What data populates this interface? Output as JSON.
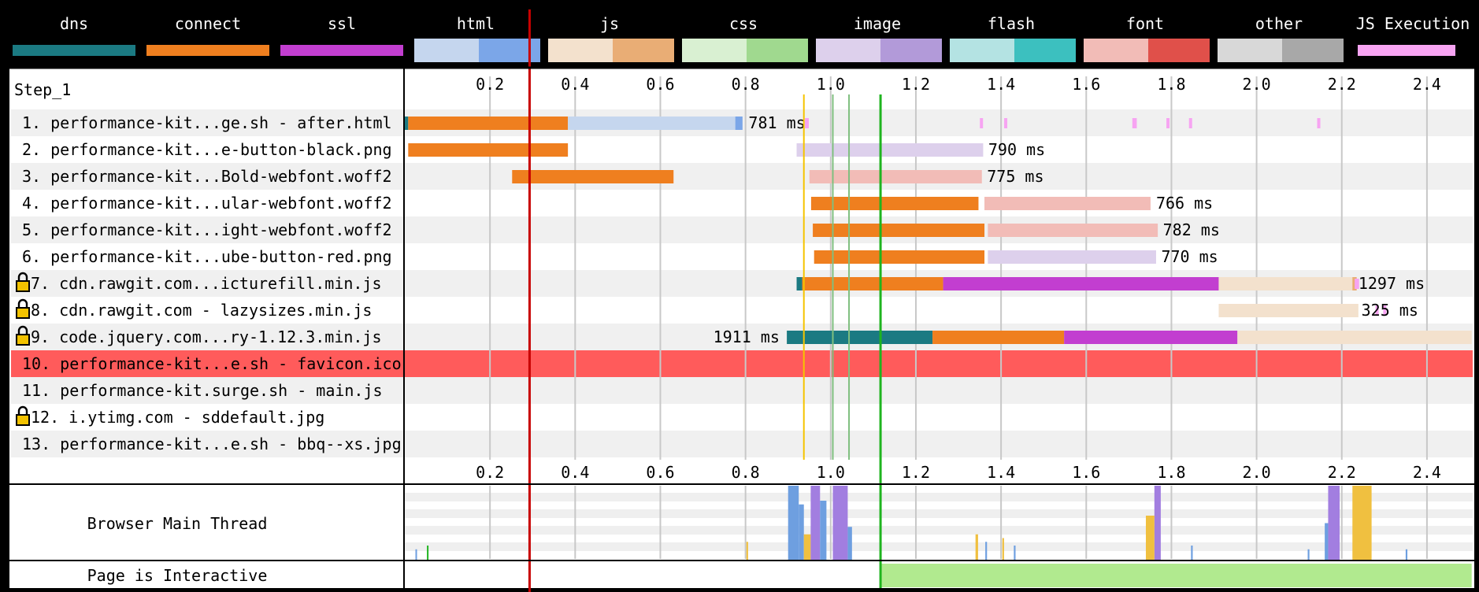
{
  "step_label": "Step_1",
  "legend": [
    {
      "name": "dns",
      "light": "#1b7a82",
      "dark": "#1b7a82",
      "solid": true
    },
    {
      "name": "connect",
      "light": "#ef7f1f",
      "dark": "#ef7f1f",
      "solid": true
    },
    {
      "name": "ssl",
      "light": "#c23ed0",
      "dark": "#c23ed0",
      "solid": true
    },
    {
      "name": "html",
      "light": "#c5d6ee",
      "dark": "#7ba6e8"
    },
    {
      "name": "js",
      "light": "#f3e1cd",
      "dark": "#e9ad75"
    },
    {
      "name": "css",
      "light": "#d9f0d2",
      "dark": "#a0d98f"
    },
    {
      "name": "image",
      "light": "#ddd0ec",
      "dark": "#b29ad9"
    },
    {
      "name": "flash",
      "light": "#b4e3e3",
      "dark": "#3cc0bf"
    },
    {
      "name": "font",
      "light": "#f2bcb7",
      "dark": "#e0504a"
    },
    {
      "name": "other",
      "light": "#d8d8d8",
      "dark": "#a8a8a8"
    },
    {
      "name": "JS Execution",
      "light": "#f7a4f2",
      "dark": "#f7a4f2",
      "solid": true,
      "narrow": true
    }
  ],
  "chart_data": {
    "type": "waterfall",
    "xlim": [
      0,
      2.5
    ],
    "x_ticks": [
      0.2,
      0.4,
      0.6,
      0.8,
      1.0,
      1.2,
      1.4,
      1.6,
      1.8,
      2.0,
      2.2,
      2.4
    ],
    "x_tick_labels": [
      "0.2",
      "0.4",
      "0.6",
      "0.8",
      "1.0",
      "1.2",
      "1.4",
      "1.6",
      "1.8",
      "2.0",
      "2.2",
      "2.4"
    ],
    "markers": [
      {
        "x": 0.293,
        "color": "#c80000"
      },
      {
        "x": 0.937,
        "color": "#f5c400"
      },
      {
        "x": 1.005,
        "color": "#7fbf7f"
      },
      {
        "x": 1.043,
        "color": "#7fbf7f"
      },
      {
        "x": 1.117,
        "color": "#1fb41f"
      }
    ],
    "requests": [
      {
        "label": "1. performance-kit...ge.sh - after.html",
        "lock": false,
        "highlight": false,
        "segments": [
          {
            "s": 0,
            "e": 0.008,
            "c": "#1b7a82"
          },
          {
            "s": 0.008,
            "e": 0.383,
            "c": "#ef7f1f"
          },
          {
            "s": 0.383,
            "e": 0.776,
            "c": "#c5d6ee"
          },
          {
            "s": 0.776,
            "e": 0.793,
            "c": "#7ba6e8"
          }
        ],
        "time": "781 ms",
        "label_x": 0.807,
        "label_side": "right",
        "js": [
          0.942,
          0.944,
          1.353,
          1.41,
          1.711,
          1.714,
          1.791,
          1.844,
          2.145
        ]
      },
      {
        "label": "2. performance-kit...e-button-black.png",
        "lock": false,
        "highlight": false,
        "segments": [
          {
            "s": 0.008,
            "e": 0.383,
            "c": "#ef7f1f"
          },
          {
            "s": 0.92,
            "e": 1.358,
            "c": "#ddd0ec"
          }
        ],
        "time": "790 ms",
        "label_x": 1.37,
        "label_side": "right",
        "js": []
      },
      {
        "label": "3. performance-kit...Bold-webfont.woff2",
        "lock": false,
        "highlight": false,
        "segments": [
          {
            "s": 0.252,
            "e": 0.631,
            "c": "#ef7f1f"
          },
          {
            "s": 0.95,
            "e": 1.355,
            "c": "#f2bcb7"
          }
        ],
        "time": "775 ms",
        "label_x": 1.367,
        "label_side": "right",
        "js": []
      },
      {
        "label": "4. performance-kit...ular-webfont.woff2",
        "lock": false,
        "highlight": false,
        "segments": [
          {
            "s": 0.954,
            "e": 1.347,
            "c": "#ef7f1f"
          },
          {
            "s": 1.361,
            "e": 1.751,
            "c": "#f2bcb7"
          }
        ],
        "time": "766 ms",
        "label_x": 1.764,
        "label_side": "right",
        "js": []
      },
      {
        "label": "5. performance-kit...ight-webfont.woff2",
        "lock": false,
        "highlight": false,
        "segments": [
          {
            "s": 0.958,
            "e": 1.361,
            "c": "#ef7f1f"
          },
          {
            "s": 1.369,
            "e": 1.768,
            "c": "#f2bcb7"
          }
        ],
        "time": "782 ms",
        "label_x": 1.78,
        "label_side": "right",
        "js": []
      },
      {
        "label": "6. performance-kit...ube-button-red.png",
        "lock": false,
        "highlight": false,
        "segments": [
          {
            "s": 0.961,
            "e": 1.361,
            "c": "#ef7f1f"
          },
          {
            "s": 1.369,
            "e": 1.764,
            "c": "#ddd0ec"
          }
        ],
        "time": "770 ms",
        "label_x": 1.776,
        "label_side": "right",
        "js": []
      },
      {
        "label": "7. cdn.rawgit.com...icturefill.min.js",
        "lock": true,
        "highlight": false,
        "segments": [
          {
            "s": 0.92,
            "e": 0.933,
            "c": "#1b7a82"
          },
          {
            "s": 0.933,
            "e": 1.264,
            "c": "#ef7f1f"
          },
          {
            "s": 1.264,
            "e": 1.911,
            "c": "#c23ed0"
          },
          {
            "s": 1.911,
            "e": 2.231,
            "c": "#f3e1cd"
          },
          {
            "s": 2.225,
            "e": 2.235,
            "c": "#e9ad75"
          }
        ],
        "time": "1297 ms",
        "label_x": 2.239,
        "label_side": "right",
        "js": [
          2.233,
          2.236
        ]
      },
      {
        "label": "8. cdn.rawgit.com - lazysizes.min.js",
        "lock": true,
        "highlight": false,
        "segments": [
          {
            "s": 1.911,
            "e": 2.239,
            "c": "#f3e1cd"
          }
        ],
        "time": "325 ms",
        "label_x": 2.246,
        "label_side": "right",
        "js": [
          2.282,
          2.3
        ]
      },
      {
        "label": "9. code.jquery.com...ry-1.12.3.min.js",
        "lock": true,
        "highlight": false,
        "segments": [
          {
            "s": 0.897,
            "e": 1.239,
            "c": "#1b7a82"
          },
          {
            "s": 1.239,
            "e": 1.548,
            "c": "#ef7f1f"
          },
          {
            "s": 1.548,
            "e": 1.955,
            "c": "#c23ed0"
          },
          {
            "s": 1.955,
            "e": 2.505,
            "c": "#f3e1cd"
          }
        ],
        "time": "1911 ms",
        "label_x": 0.88,
        "label_side": "left",
        "js": []
      },
      {
        "label": "10. performance-kit...e.sh - favicon.ico",
        "lock": false,
        "highlight": true,
        "segments": [],
        "time": "",
        "js": []
      },
      {
        "label": "11. performance-kit.surge.sh - main.js",
        "lock": false,
        "highlight": false,
        "segments": [],
        "time": "",
        "js": []
      },
      {
        "label": "12. i.ytimg.com - sddefault.jpg",
        "lock": true,
        "highlight": false,
        "segments": [],
        "time": "",
        "js": []
      },
      {
        "label": "13. performance-kit...e.sh - bbq--xs.jpg",
        "lock": false,
        "highlight": false,
        "segments": [],
        "time": "",
        "js": []
      }
    ],
    "main_thread": {
      "label": "Browser Main Thread",
      "bursts": [
        {
          "s": 0.9,
          "e": 0.925,
          "c": "#6e9fe0",
          "h": 1.0
        },
        {
          "s": 0.925,
          "e": 0.937,
          "c": "#6e9fe0",
          "h": 0.75
        },
        {
          "s": 0.937,
          "e": 0.953,
          "c": "#f0c040",
          "h": 0.35
        },
        {
          "s": 0.953,
          "e": 0.975,
          "c": "#a27ee0",
          "h": 1.0
        },
        {
          "s": 0.975,
          "e": 0.99,
          "c": "#6e9fe0",
          "h": 0.8
        },
        {
          "s": 1.005,
          "e": 1.04,
          "c": "#a27ee0",
          "h": 1.0
        },
        {
          "s": 1.04,
          "e": 1.05,
          "c": "#6e9fe0",
          "h": 0.45
        },
        {
          "s": 1.76,
          "e": 1.775,
          "c": "#a27ee0",
          "h": 1.0
        },
        {
          "s": 1.74,
          "e": 1.76,
          "c": "#f0c040",
          "h": 0.6
        },
        {
          "s": 2.168,
          "e": 2.195,
          "c": "#a27ee0",
          "h": 1.0
        },
        {
          "s": 2.16,
          "e": 2.168,
          "c": "#6e9fe0",
          "h": 0.5
        },
        {
          "s": 2.225,
          "e": 2.27,
          "c": "#f0c040",
          "h": 1.0
        },
        {
          "s": 0.025,
          "e": 0.028,
          "c": "#6e9fe0",
          "h": 0.15
        },
        {
          "s": 0.052,
          "e": 0.055,
          "c": "#1fb41f",
          "h": 0.2
        },
        {
          "s": 0.802,
          "e": 0.806,
          "c": "#f0c040",
          "h": 0.25
        },
        {
          "s": 1.34,
          "e": 1.346,
          "c": "#f0c040",
          "h": 0.35
        },
        {
          "s": 1.363,
          "e": 1.367,
          "c": "#6e9fe0",
          "h": 0.25
        },
        {
          "s": 1.403,
          "e": 1.407,
          "c": "#f0c040",
          "h": 0.3
        },
        {
          "s": 1.43,
          "e": 1.434,
          "c": "#6e9fe0",
          "h": 0.2
        },
        {
          "s": 1.846,
          "e": 1.85,
          "c": "#6e9fe0",
          "h": 0.2
        },
        {
          "s": 2.12,
          "e": 2.124,
          "c": "#6e9fe0",
          "h": 0.15
        },
        {
          "s": 2.35,
          "e": 2.354,
          "c": "#6e9fe0",
          "h": 0.15
        }
      ]
    },
    "interactive": {
      "label": "Page is Interactive",
      "start": 1.117,
      "end": 2.505,
      "color": "#b1ea8f"
    }
  }
}
